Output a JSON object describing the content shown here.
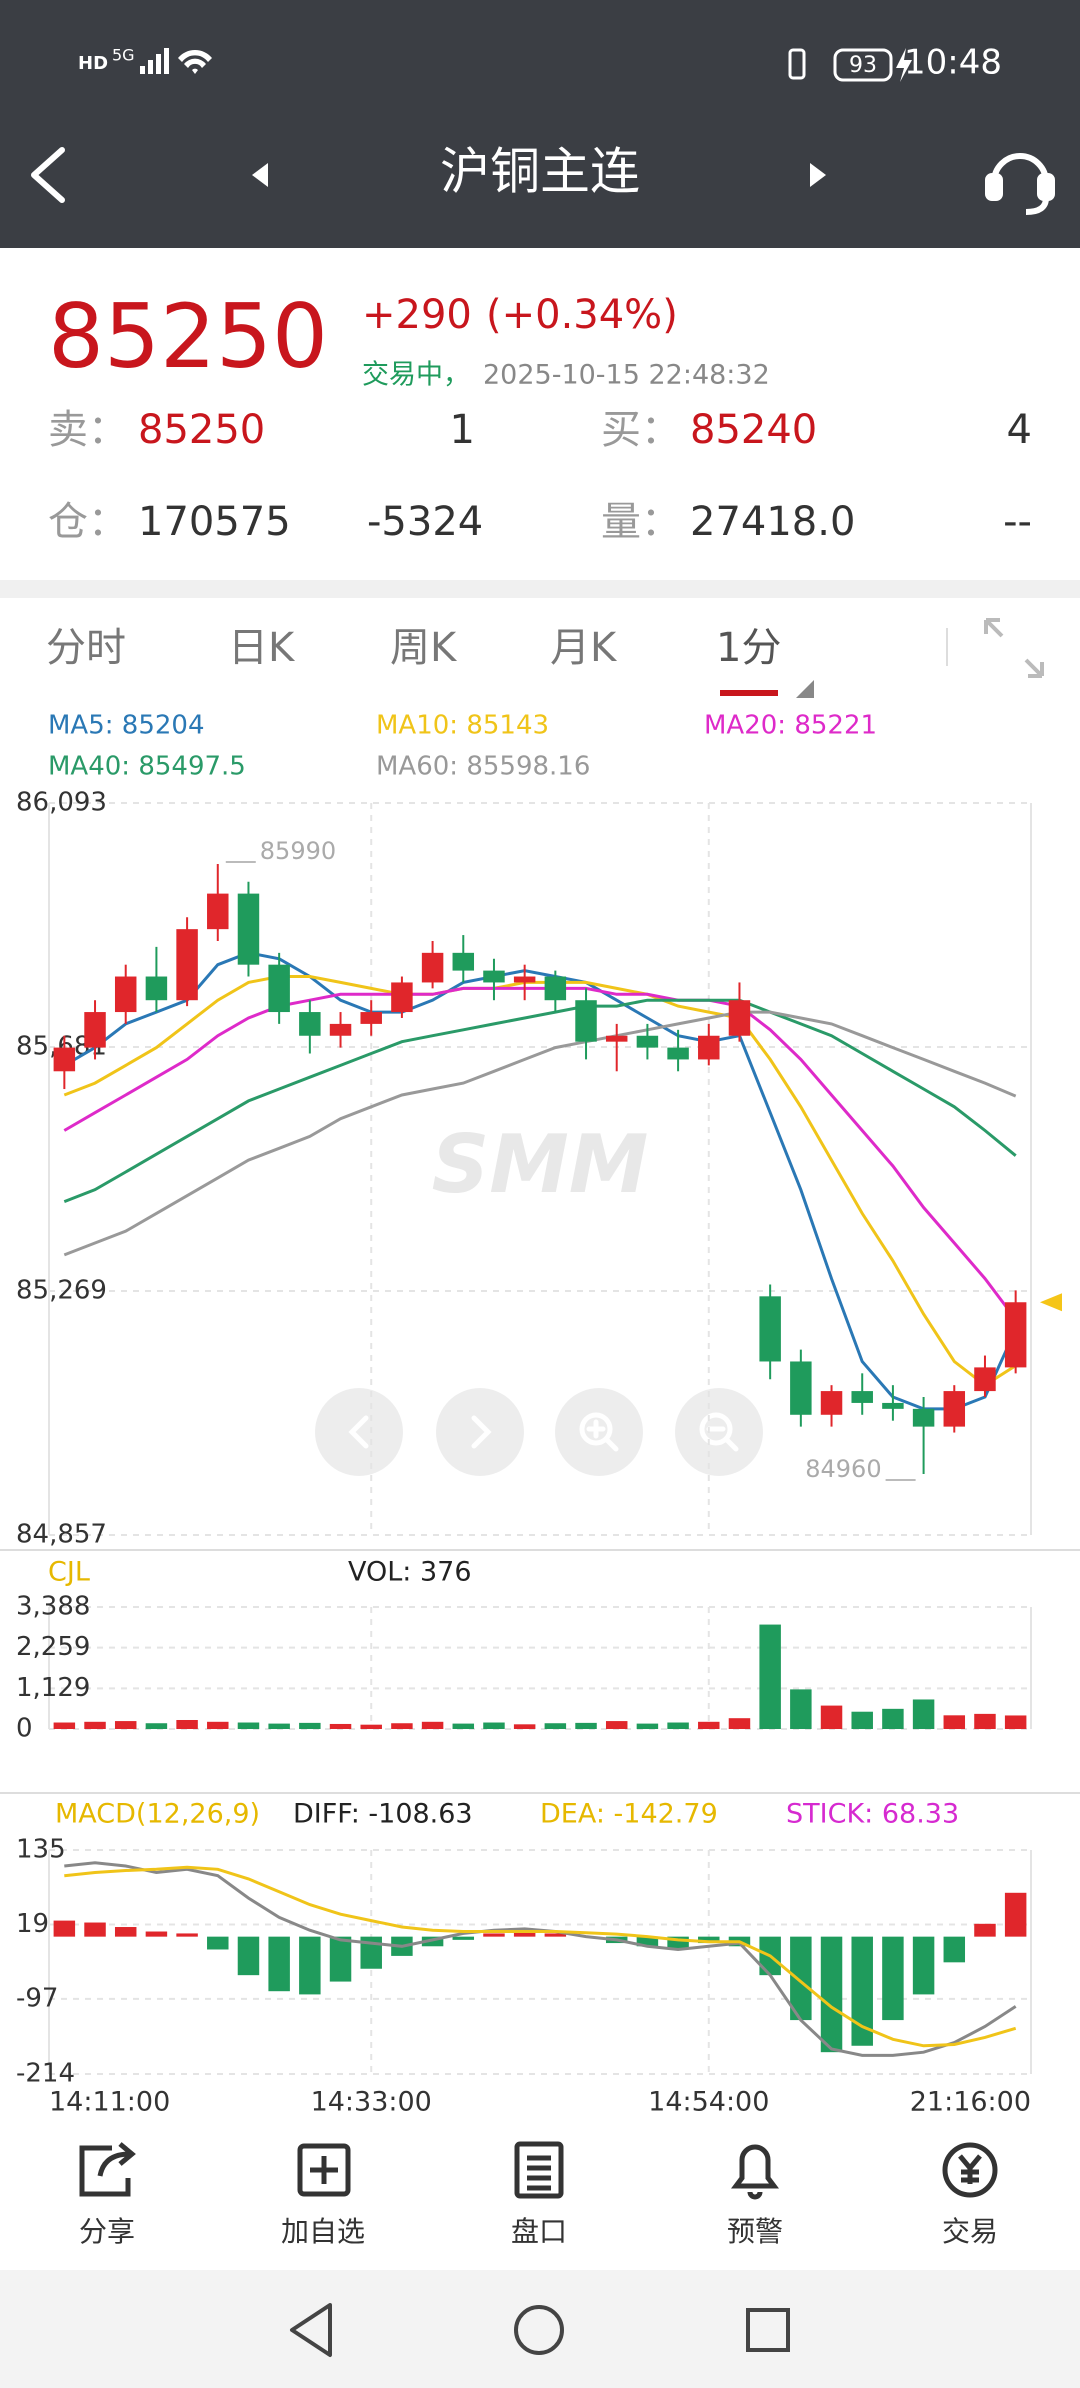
{
  "status_bar": {
    "network": "HD",
    "signal": "5G",
    "battery": 93,
    "time": "10:48"
  },
  "header": {
    "title": "沪铜主连"
  },
  "quote": {
    "price": 85250,
    "change": "+290",
    "change_pct": "(+0.34%)",
    "state": "交易中，",
    "timestamp": "2025-10-15 22:48:32",
    "sell_label": "卖：",
    "sell_price": 85250,
    "sell_volume": 1,
    "buy_label": "买：",
    "buy_price": 85240,
    "buy_volume": 4,
    "oi_label": "仓：",
    "open_interest": 170575,
    "oi_change": -5324,
    "volume_label": "量：",
    "volume": "27418.0",
    "volume_change": "--"
  },
  "tabs": [
    "分时",
    "日K",
    "周K",
    "月K",
    "1分"
  ],
  "watermark": "SMM",
  "toolbar": [
    "分享",
    "加自选",
    "盘口",
    "预警",
    "交易"
  ],
  "chart_data": [
    {
      "type": "candlestick",
      "up_color": "#e0262b",
      "down_color": "#1f9b5c",
      "ylim": [
        84857,
        86093
      ],
      "yticks": [
        {
          "value": 84857,
          "label": "84,857"
        },
        {
          "value": 85269,
          "label": "85,269"
        },
        {
          "value": 85681,
          "label": "85,681"
        },
        {
          "value": 86093,
          "label": "86,093"
        }
      ],
      "open": [
        85640,
        85680,
        85740,
        85800,
        85760,
        85880,
        85940,
        85820,
        85740,
        85700,
        85720,
        85740,
        85790,
        85840,
        85810,
        85790,
        85800,
        85760,
        85690,
        85700,
        85680,
        85660,
        85700,
        85260,
        85150,
        85060,
        85100,
        85080,
        85070,
        85040,
        85100,
        85140
      ],
      "high": [
        85700,
        85760,
        85820,
        85850,
        85900,
        85990,
        85960,
        85840,
        85760,
        85740,
        85760,
        85800,
        85860,
        85870,
        85830,
        85820,
        85810,
        85780,
        85720,
        85720,
        85710,
        85720,
        85790,
        85280,
        85170,
        85110,
        85130,
        85110,
        85090,
        85110,
        85160,
        85270
      ],
      "low": [
        85610,
        85660,
        85720,
        85740,
        85750,
        85860,
        85800,
        85720,
        85670,
        85680,
        85700,
        85730,
        85780,
        85790,
        85760,
        85760,
        85740,
        85660,
        85640,
        85660,
        85640,
        85650,
        85690,
        85120,
        85040,
        85040,
        85060,
        85050,
        84960,
        85030,
        85090,
        85130
      ],
      "close": [
        85680,
        85740,
        85800,
        85760,
        85880,
        85940,
        85820,
        85740,
        85700,
        85720,
        85740,
        85790,
        85840,
        85810,
        85790,
        85800,
        85760,
        85690,
        85700,
        85680,
        85660,
        85700,
        85760,
        85150,
        85060,
        85100,
        85080,
        85070,
        85040,
        85100,
        85140,
        85250
      ],
      "series": [
        {
          "name": "MA5: 85204",
          "color": "#2a78b5",
          "values": [
            85650,
            85680,
            85720,
            85740,
            85760,
            85820,
            85840,
            85830,
            85800,
            85760,
            85740,
            85740,
            85760,
            85790,
            85800,
            85810,
            85800,
            85790,
            85760,
            85730,
            85700,
            85690,
            85700,
            85570,
            85440,
            85290,
            85150,
            85090,
            85070,
            85070,
            85090,
            85204
          ]
        },
        {
          "name": "MA10: 85143",
          "color": "#f0c419",
          "values": [
            85600,
            85620,
            85650,
            85680,
            85720,
            85760,
            85790,
            85800,
            85800,
            85790,
            85780,
            85770,
            85770,
            85780,
            85780,
            85790,
            85790,
            85790,
            85780,
            85770,
            85750,
            85740,
            85730,
            85660,
            85580,
            85490,
            85400,
            85320,
            85230,
            85150,
            85110,
            85143
          ]
        },
        {
          "name": "MA20: 85221",
          "color": "#de2ac9",
          "values": [
            85540,
            85570,
            85600,
            85630,
            85660,
            85700,
            85730,
            85750,
            85760,
            85770,
            85770,
            85770,
            85770,
            85780,
            85780,
            85780,
            85780,
            85780,
            85770,
            85770,
            85760,
            85760,
            85750,
            85710,
            85660,
            85600,
            85540,
            85480,
            85410,
            85350,
            85290,
            85221
          ]
        },
        {
          "name": "MA40: 85497.5",
          "color": "#2a9a68",
          "values": [
            85420,
            85440,
            85470,
            85500,
            85530,
            85560,
            85590,
            85610,
            85630,
            85650,
            85670,
            85690,
            85700,
            85710,
            85720,
            85730,
            85740,
            85750,
            85750,
            85760,
            85760,
            85760,
            85760,
            85740,
            85720,
            85700,
            85670,
            85640,
            85610,
            85580,
            85540,
            85497.5
          ]
        },
        {
          "name": "MA60: 85598.16",
          "color": "#999999",
          "values": [
            85330,
            85350,
            85370,
            85400,
            85430,
            85460,
            85490,
            85510,
            85530,
            85560,
            85580,
            85600,
            85610,
            85620,
            85640,
            85660,
            85680,
            85690,
            85700,
            85710,
            85720,
            85730,
            85740,
            85740,
            85730,
            85720,
            85700,
            85680,
            85660,
            85640,
            85620,
            85598.16
          ]
        }
      ]
    },
    {
      "type": "bar",
      "title": "CJL",
      "title_color": "#e6b800",
      "up_color": "#e0262b",
      "down_color": "#1f9b5c",
      "ylim": [
        0,
        3388
      ],
      "yticks": [
        0,
        {
          "value": 1129,
          "label": "1,129"
        },
        {
          "value": 2259,
          "label": "2,259"
        },
        {
          "value": 3388,
          "label": "3,388"
        }
      ],
      "series": [
        {
          "name": "VOL: 376",
          "color": "#222222",
          "values": [
            180,
            200,
            220,
            160,
            250,
            200,
            180,
            150,
            170,
            140,
            120,
            160,
            200,
            150,
            180,
            130,
            160,
            170,
            220,
            150,
            180,
            200,
            300,
            2900,
            1100,
            650,
            480,
            560,
            820,
            380,
            420,
            376
          ]
        }
      ]
    },
    {
      "type": "macd",
      "title": "MACD(12,26,9)",
      "title_color": "#e6b800",
      "up_color": "#e0262b",
      "down_color": "#1f9b5c",
      "ylim": [
        -214,
        135
      ],
      "yticks": [
        -214,
        -97,
        19,
        135
      ],
      "categories": [
        "14:11:00",
        null,
        null,
        null,
        null,
        null,
        null,
        null,
        null,
        null,
        "14:33:00",
        null,
        null,
        null,
        null,
        null,
        null,
        null,
        null,
        null,
        null,
        "14:54:00",
        null,
        null,
        null,
        null,
        null,
        null,
        null,
        null,
        null,
        "21:16:00"
      ],
      "series": [
        {
          "name": "DIFF: -108.63",
          "color": "#888888",
          "legend_color": "#222222",
          "values": [
            110,
            115,
            110,
            100,
            105,
            95,
            60,
            30,
            10,
            -5,
            -10,
            -15,
            -5,
            5,
            10,
            12,
            8,
            0,
            -5,
            -15,
            -20,
            -15,
            -10,
            -60,
            -130,
            -175,
            -185,
            -185,
            -180,
            -165,
            -140,
            -108.63
          ]
        },
        {
          "name": "DEA: -142.79",
          "color": "#f0c419",
          "legend_color": "#e6b800",
          "values": [
            95,
            100,
            103,
            105,
            108,
            105,
            90,
            70,
            50,
            35,
            25,
            15,
            10,
            8,
            8,
            8,
            8,
            6,
            4,
            0,
            -5,
            -8,
            -8,
            -30,
            -70,
            -110,
            -140,
            -160,
            -170,
            -168,
            -157,
            -142.79
          ]
        },
        {
          "name": "STICK: 68.33",
          "color": "#d62ad0",
          "legend_color": "#d62ad0",
          "values": [
            25,
            22,
            15,
            8,
            5,
            -20,
            -60,
            -85,
            -90,
            -70,
            -50,
            -30,
            -15,
            -5,
            5,
            10,
            5,
            0,
            -10,
            -15,
            -20,
            -10,
            -15,
            -60,
            -130,
            -180,
            -170,
            -130,
            -90,
            -40,
            20,
            68.33
          ]
        }
      ]
    }
  ]
}
